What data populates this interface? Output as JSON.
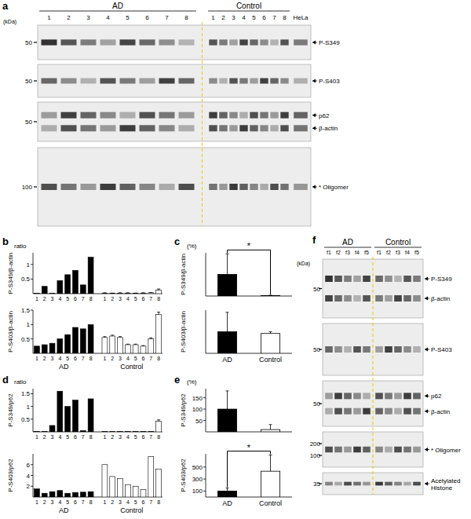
{
  "panel_labels": [
    "a",
    "b",
    "c",
    "d",
    "e",
    "f"
  ],
  "blots": [
    {
      "unit": "(kDa)",
      "groups": [
        {
          "name": "AD",
          "lanes": [
            "1",
            "2",
            "3",
            "4",
            "5",
            "6",
            "7",
            "8"
          ]
        },
        {
          "name": "Control",
          "lanes": [
            "1",
            "2",
            "3",
            "4",
            "5",
            "6",
            "7",
            "8"
          ]
        }
      ],
      "extra_lanes": [
        "HeLa"
      ],
      "rows": [
        {
          "markers": [
            50
          ],
          "labels": [
            "P-S349"
          ]
        },
        {
          "markers": [
            50
          ],
          "labels": [
            "P-S403"
          ]
        },
        {
          "markers": [
            50
          ],
          "labels": [
            "p62",
            "β-actin"
          ]
        },
        {
          "markers": [
            100
          ],
          "labels": [
            "* Oligomer"
          ]
        }
      ]
    },
    {
      "unit": "(kDa)",
      "groups": [
        {
          "name": "AD",
          "lanes": [
            "f1",
            "f2",
            "f3",
            "f4",
            "f5"
          ]
        },
        {
          "name": "Control",
          "lanes": [
            "f1",
            "f2",
            "f3",
            "f4",
            "f5"
          ]
        }
      ],
      "extra_lanes": [],
      "rows": [
        {
          "markers": [
            50
          ],
          "labels": [
            "P-S349",
            "β-actin"
          ]
        },
        {
          "markers": [
            50
          ],
          "labels": [
            "P-S403"
          ]
        },
        {
          "markers": [
            50
          ],
          "labels": [
            "p62",
            "β-actin"
          ]
        },
        {
          "markers": [
            200,
            100
          ],
          "labels": [
            "* Oligomer"
          ]
        },
        {
          "markers": [
            35
          ],
          "labels": [
            "Acetylated Histone"
          ]
        }
      ]
    }
  ],
  "chart_data": [
    {
      "type": "bar",
      "subtitle": "ratio",
      "ylabel": "P-S349/β-actin",
      "categories": [
        "1",
        "2",
        "3",
        "4",
        "5",
        "6",
        "7",
        "8"
      ],
      "ylim": [
        0,
        1.4
      ],
      "yticks": [
        0.5,
        1
      ],
      "series": [
        {
          "color": "#000000",
          "values": [
            0.01,
            0.25,
            0.01,
            0.45,
            0.65,
            0.8,
            0.3,
            1.25
          ]
        },
        {
          "color": "#ffffff",
          "values": [
            0.02,
            0.01,
            0.02,
            0.02,
            0.01,
            0.02,
            0.03,
            0.12
          ],
          "errors": [
            0.01,
            0.01,
            0.01,
            0.01,
            0.01,
            0.01,
            0.01,
            0.04
          ]
        }
      ]
    },
    {
      "type": "bar",
      "ylabel": "P-S403/β-actin",
      "categories": [
        "1",
        "2",
        "3",
        "4",
        "5",
        "6",
        "7",
        "8"
      ],
      "ylim": [
        0,
        1.5
      ],
      "yticks": [
        0.5,
        1,
        1.5
      ],
      "series": [
        {
          "name": "AD",
          "color": "#000000",
          "values": [
            0.25,
            0.3,
            0.35,
            0.5,
            0.65,
            0.9,
            0.85,
            1.0
          ]
        },
        {
          "name": "Control",
          "color": "#ffffff",
          "values": [
            0.55,
            0.6,
            0.55,
            0.3,
            0.3,
            0.25,
            0.5,
            1.35
          ],
          "errors": [
            0.03,
            0.03,
            0.03,
            0.02,
            0.02,
            0.02,
            0.04,
            0.08
          ]
        }
      ]
    },
    {
      "type": "bar",
      "subtitle": "(%)",
      "ylabel": "P-S349/β-actin",
      "categories": [
        null,
        null
      ],
      "values": [
        100,
        2
      ],
      "errors": [
        95,
        2
      ],
      "colors": [
        "#000000",
        "#ffffff"
      ],
      "ylim": [
        0,
        200
      ],
      "yticks": [],
      "annotations": [
        {
          "text": "*",
          "from": 0,
          "to": 1
        }
      ]
    },
    {
      "type": "bar",
      "ylabel": "P-S403/β-actin",
      "categories": [
        "AD",
        "Control"
      ],
      "values": [
        100,
        92
      ],
      "errors": [
        90,
        8
      ],
      "colors": [
        "#000000",
        "#ffffff"
      ],
      "ylim": [
        0,
        200
      ],
      "yticks": []
    },
    {
      "type": "bar",
      "subtitle": "ratio",
      "ylabel": "P-S349/p62",
      "categories": [
        "1",
        "2",
        "3",
        "4",
        "5",
        "6",
        "7",
        "8"
      ],
      "ylim": [
        0,
        1.7
      ],
      "yticks": [
        0.5,
        1,
        1.5
      ],
      "series": [
        {
          "color": "#000000",
          "values": [
            0.01,
            0.01,
            0.25,
            1.6,
            1.0,
            1.25,
            0.05,
            1.3
          ]
        },
        {
          "color": "#ffffff",
          "values": [
            0.01,
            0.02,
            0.01,
            0.01,
            0.01,
            0.01,
            0.02,
            0.42
          ],
          "errors": [
            null,
            null,
            null,
            null,
            null,
            null,
            null,
            0.05
          ]
        }
      ]
    },
    {
      "type": "bar",
      "ylabel": "P-S403/p62",
      "categories": [
        "1",
        "2",
        "3",
        "4",
        "5",
        "6",
        "7",
        "8"
      ],
      "ylim": [
        0,
        8
      ],
      "yticks": [
        2,
        4,
        6
      ],
      "series": [
        {
          "name": "AD",
          "color": "#000000",
          "values": [
            1.5,
            0.7,
            1.0,
            1.2,
            0.7,
            0.85,
            0.9,
            1.0
          ]
        },
        {
          "name": "Control",
          "color": "#ffffff",
          "values": [
            6.0,
            3.8,
            3.4,
            2.3,
            2.0,
            1.4,
            7.5,
            5.2
          ]
        }
      ]
    },
    {
      "type": "bar",
      "subtitle": "(%)",
      "ylabel": "P-S349/p62",
      "categories": [
        null,
        null
      ],
      "values": [
        100,
        10
      ],
      "errors": [
        80,
        22
      ],
      "colors": [
        "#000000",
        "#ffffff"
      ],
      "ylim": [
        0,
        190
      ],
      "yticks": [
        50,
        100,
        150
      ]
    },
    {
      "type": "bar",
      "ylabel": "P-S403/p62",
      "categories": [
        "AD",
        "Control"
      ],
      "values": [
        100,
        430
      ],
      "errors": [
        50,
        270
      ],
      "colors": [
        "#000000",
        "#ffffff"
      ],
      "ylim": [
        0,
        720
      ],
      "yticks": [
        100,
        300,
        500
      ],
      "annotations": [
        {
          "text": "*",
          "from": 0,
          "to": 1
        }
      ]
    }
  ]
}
